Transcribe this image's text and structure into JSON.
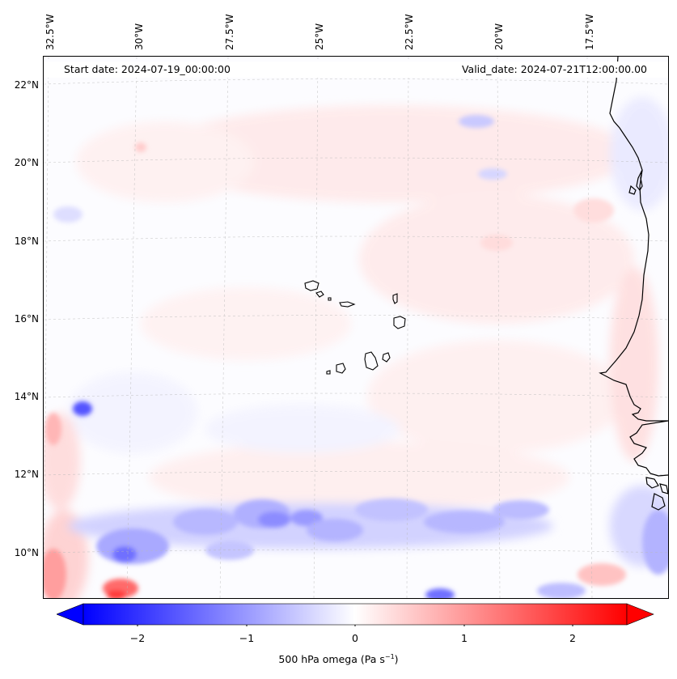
{
  "map": {
    "start_date": "Start date: 2024-07-19_00:00:00",
    "valid_date": "Valid_date: 2024-07-21T12:00:00.00",
    "lon_labels": [
      "32.5°W",
      "30°W",
      "27.5°W",
      "25°W",
      "22.5°W",
      "20°W",
      "17.5°W"
    ],
    "lat_labels": [
      "22°N",
      "20°N",
      "18°N",
      "16°N",
      "14°N",
      "12°N",
      "10°N"
    ],
    "colors": {
      "negative": "#0000ff",
      "zero": "#ffffff",
      "positive": "#ff0000",
      "coast": "#000000"
    }
  },
  "colorbar": {
    "ticks": [
      "−2",
      "−1",
      "0",
      "1",
      "2"
    ],
    "label_main": "500 hPa omega (Pa s",
    "label_sup": "−1",
    "label_end": ")",
    "range": [
      -2.5,
      2.5
    ]
  }
}
